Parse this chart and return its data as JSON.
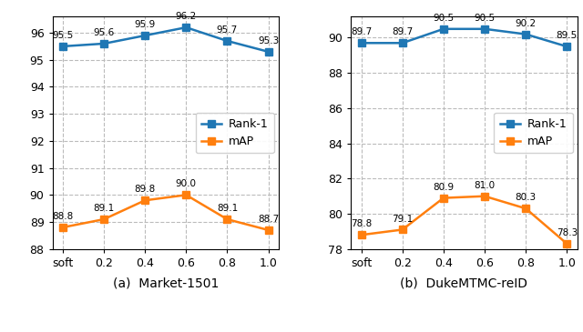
{
  "left": {
    "x_labels": [
      "soft",
      "0.2",
      "0.4",
      "0.6",
      "0.8",
      "1.0"
    ],
    "rank1": [
      95.5,
      95.6,
      95.9,
      96.2,
      95.7,
      95.3
    ],
    "map": [
      88.8,
      89.1,
      89.8,
      90.0,
      89.1,
      88.7
    ],
    "ylim": [
      88,
      96.6
    ],
    "yticks": [
      88,
      89,
      90,
      91,
      92,
      93,
      94,
      95,
      96
    ],
    "title": "(a)  Market-1501"
  },
  "right": {
    "x_labels": [
      "soft",
      "0.2",
      "0.4",
      "0.6",
      "0.8",
      "1.0"
    ],
    "rank1": [
      89.7,
      89.7,
      90.5,
      90.5,
      90.2,
      89.5
    ],
    "map": [
      78.8,
      79.1,
      80.9,
      81.0,
      80.3,
      78.3
    ],
    "ylim": [
      78,
      91.2
    ],
    "yticks": [
      78,
      80,
      82,
      84,
      86,
      88,
      90
    ],
    "title": "(b)  DukeMTMC-reID"
  },
  "rank1_color": "#1f77b4",
  "map_color": "#ff7f0e",
  "marker": "s",
  "markersize": 6,
  "linewidth": 1.8,
  "grid_color": "#bbbbbb",
  "grid_style": "--",
  "legend_loc": "center right",
  "rank1_label": "Rank-1",
  "map_label": "mAP",
  "fig_facecolor": "#ffffff",
  "axes_facecolor": "#ffffff",
  "annotation_fontsize": 7.5,
  "tick_fontsize": 9,
  "xlabel_fontsize": 10,
  "legend_fontsize": 9
}
